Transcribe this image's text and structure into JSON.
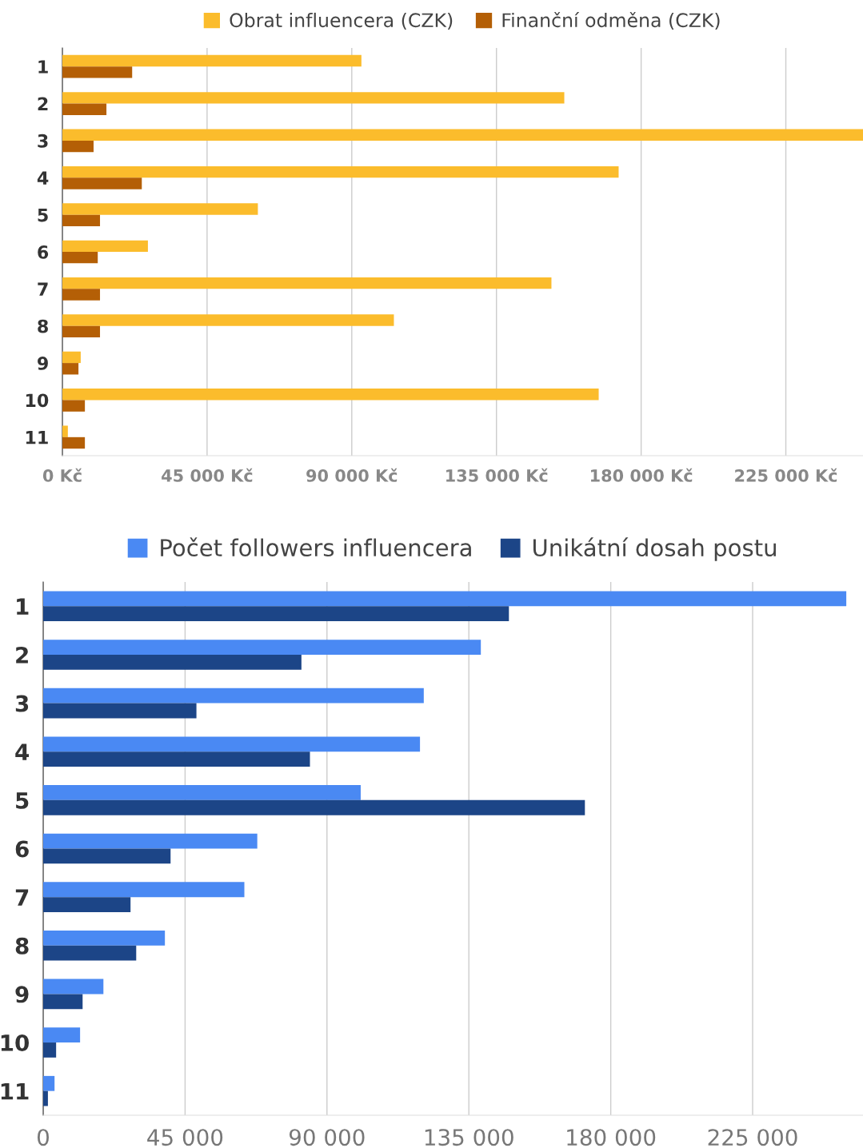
{
  "chart_data": [
    {
      "type": "bar",
      "orientation": "horizontal",
      "categories": [
        "1",
        "2",
        "3",
        "4",
        "5",
        "6",
        "7",
        "8",
        "9",
        "10",
        "11"
      ],
      "series": [
        {
          "name": "Obrat influencera (CZK)",
          "color": "#fbbc2c",
          "values": [
            93000,
            156100,
            249000,
            173000,
            60800,
            26600,
            152100,
            103100,
            5700,
            166800,
            1700
          ]
        },
        {
          "name": "Finanční odměna (CZK)",
          "color": "#b45f06",
          "values": [
            21700,
            13700,
            9700,
            24700,
            11700,
            11000,
            11700,
            11700,
            5000,
            7000,
            7000
          ]
        }
      ],
      "xlim": [
        0,
        249000
      ],
      "xticks": [
        {
          "value": 0,
          "label": "0 Kč"
        },
        {
          "value": 45000,
          "label": "45 000 Kč"
        },
        {
          "value": 90000,
          "label": "90 000 Kč"
        },
        {
          "value": 135000,
          "label": "135 000 Kč"
        },
        {
          "value": 180000,
          "label": "180 000 Kč"
        },
        {
          "value": 225000,
          "label": "225 000 Kč"
        }
      ],
      "grid": "x",
      "legend": "top"
    },
    {
      "type": "bar",
      "orientation": "horizontal",
      "categories": [
        "1",
        "2",
        "3",
        "4",
        "5",
        "6",
        "7",
        "8",
        "9",
        "10",
        "11"
      ],
      "series": [
        {
          "name": "Počet followers influencera",
          "color": "#4a89f3",
          "values": [
            254700,
            138800,
            120700,
            119500,
            100700,
            67900,
            63800,
            38600,
            19100,
            11700,
            3600
          ]
        },
        {
          "name": "Unikátní dosah postu",
          "color": "#1c4587",
          "values": [
            147700,
            81900,
            48600,
            84600,
            171800,
            40400,
            27700,
            29500,
            12500,
            4100,
            1500
          ]
        }
      ],
      "xlim": [
        0,
        260000
      ],
      "xticks": [
        0,
        {
          "value": 45000,
          "label": "45 000"
        },
        {
          "value": 90000,
          "label": "90 000"
        },
        {
          "value": 135000,
          "label": "135 000"
        },
        {
          "value": 180000,
          "label": "180 000"
        },
        {
          "value": 225000,
          "label": "225 000"
        }
      ],
      "grid": "x",
      "legend": "top"
    }
  ]
}
